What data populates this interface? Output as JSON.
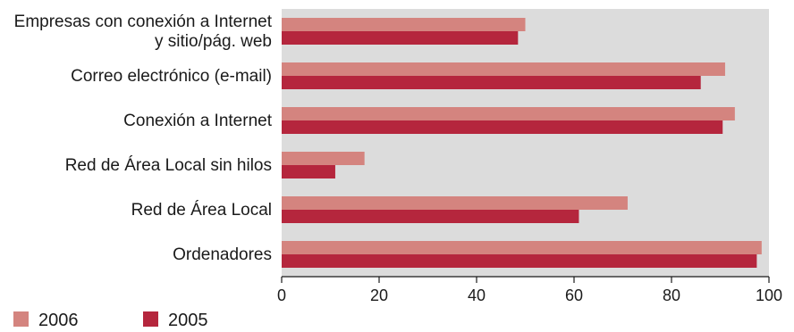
{
  "chart_data": {
    "type": "bar",
    "orientation": "horizontal",
    "categories": [
      [
        "Empresas con conexión a Internet",
        "y sitio/pág. web"
      ],
      [
        "Correo electrónico (e-mail)"
      ],
      [
        "Conexión a Internet"
      ],
      [
        "Red de Área Local sin hilos"
      ],
      [
        "Red de Área Local"
      ],
      [
        "Ordenadores"
      ]
    ],
    "series": [
      {
        "name": "2006",
        "color": "#d4847f",
        "values": [
          50,
          91,
          93,
          17,
          71,
          98.5
        ]
      },
      {
        "name": "2005",
        "color": "#b5263d",
        "values": [
          48.5,
          86,
          90.5,
          11,
          61,
          97.5
        ]
      }
    ],
    "xlim": [
      0,
      100
    ],
    "xticks": [
      0,
      20,
      40,
      60,
      80,
      100
    ],
    "grid": false,
    "plot_background": "#dcdcdc",
    "legend_position": "bottom-left",
    "title": "",
    "xlabel": "",
    "ylabel": ""
  }
}
